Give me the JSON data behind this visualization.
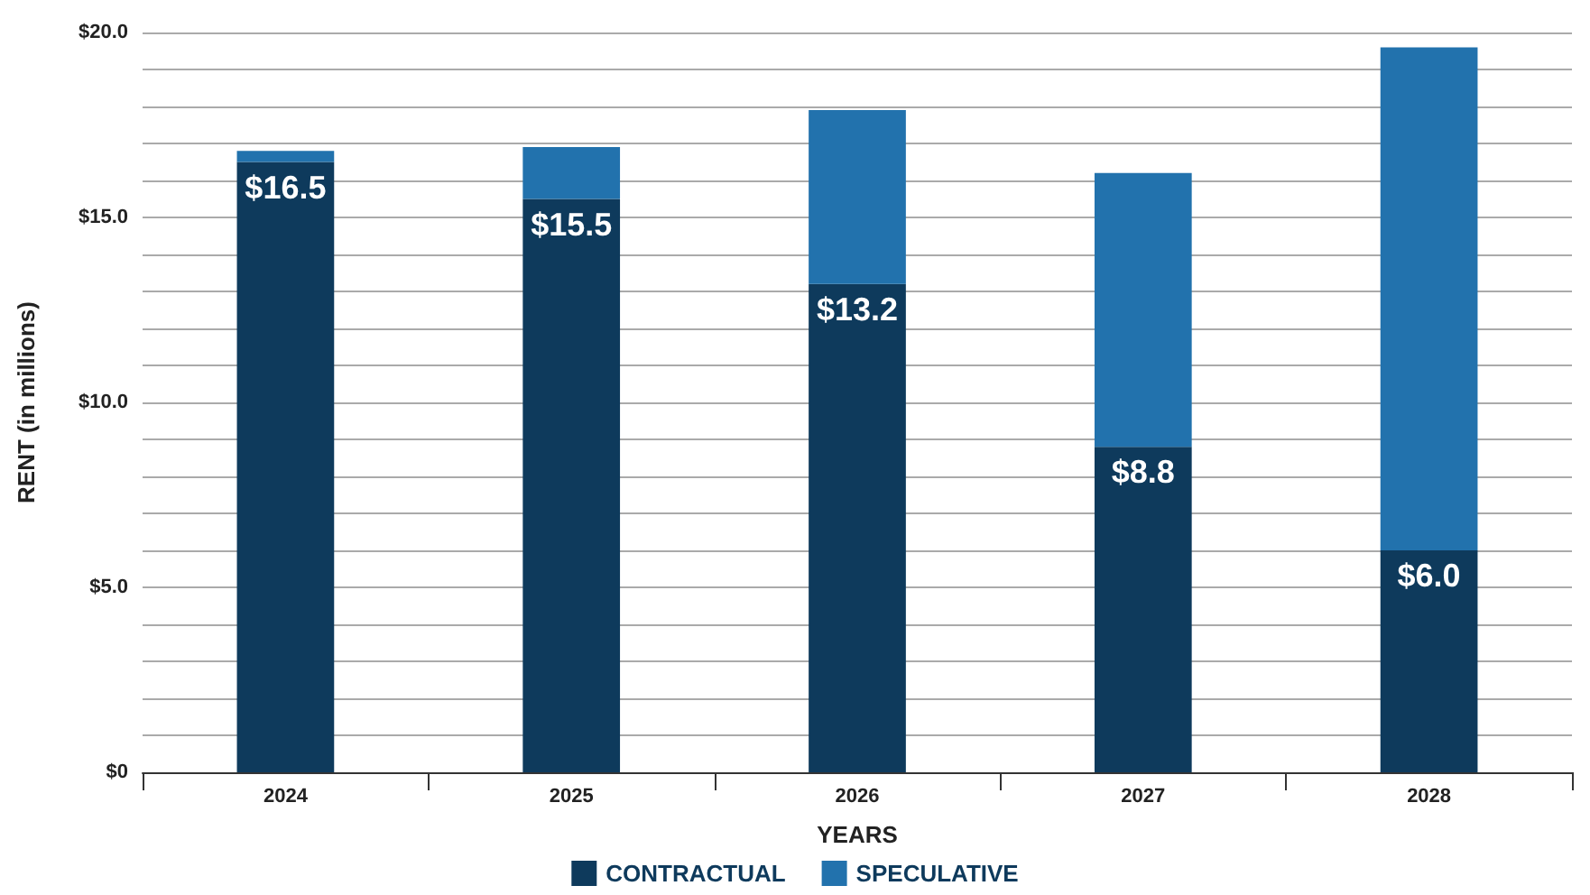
{
  "chart_data": {
    "type": "bar",
    "stacked": true,
    "xlabel": "YEARS",
    "ylabel": "RENT (in millions)",
    "categories": [
      "2024",
      "2025",
      "2026",
      "2027",
      "2028"
    ],
    "series": [
      {
        "name": "CONTRACTUAL",
        "color": "#0e3a5c",
        "values": [
          16.5,
          15.5,
          13.2,
          8.8,
          6.0
        ],
        "value_labels": [
          "$16.5",
          "$15.5",
          "$13.2",
          "$8.8",
          "$6.0"
        ]
      },
      {
        "name": "SPECULATIVE",
        "color": "#2272ad",
        "values": [
          0.3,
          1.4,
          4.7,
          7.4,
          13.6
        ]
      }
    ],
    "ylim": [
      0,
      20
    ],
    "yticks": [
      {
        "value": 0,
        "label": "$0"
      },
      {
        "value": 1,
        "label": null
      },
      {
        "value": 2,
        "label": null
      },
      {
        "value": 3,
        "label": null
      },
      {
        "value": 4,
        "label": null
      },
      {
        "value": 5,
        "label": "$5.0"
      },
      {
        "value": 6,
        "label": null
      },
      {
        "value": 7,
        "label": null
      },
      {
        "value": 8,
        "label": null
      },
      {
        "value": 9,
        "label": null
      },
      {
        "value": 10,
        "label": "$10.0"
      },
      {
        "value": 11,
        "label": null
      },
      {
        "value": 12,
        "label": null
      },
      {
        "value": 13,
        "label": null
      },
      {
        "value": 14,
        "label": null
      },
      {
        "value": 15,
        "label": "$15.0"
      },
      {
        "value": 16,
        "label": null
      },
      {
        "value": 17,
        "label": null
      },
      {
        "value": 18,
        "label": null
      },
      {
        "value": 19,
        "label": null
      },
      {
        "value": 20,
        "label": "$20.0"
      }
    ],
    "grid": "y",
    "legend": "bottom"
  }
}
